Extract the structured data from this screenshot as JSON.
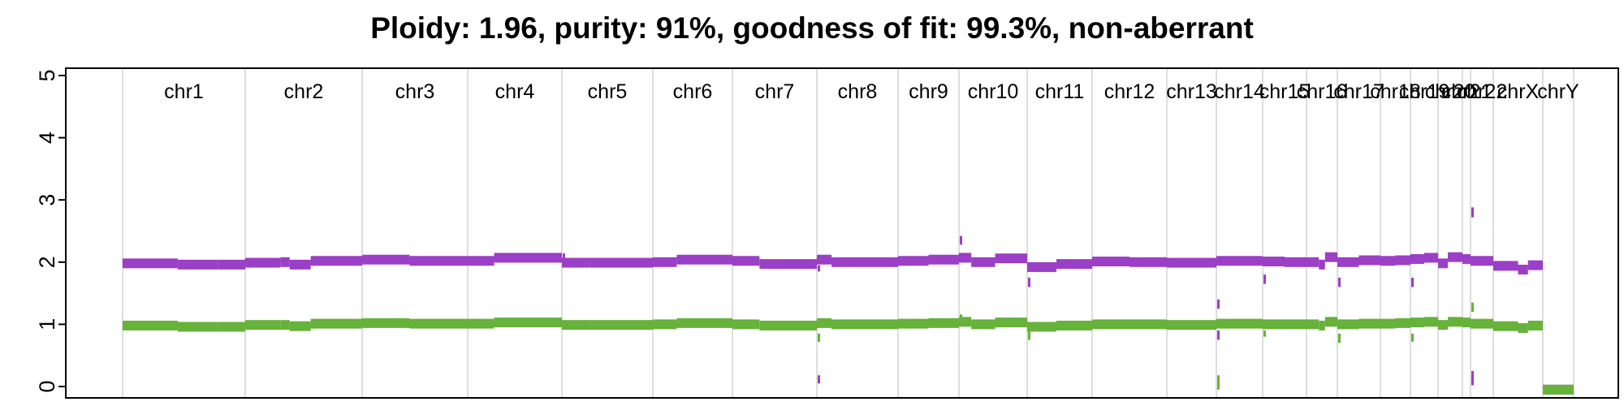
{
  "chart_data": {
    "type": "line",
    "title": "Ploidy: 1.96, purity: 91%, goodness of fit: 99.3%, non-aberrant",
    "xlabel": "",
    "ylabel": "",
    "ylim": [
      0,
      5
    ],
    "y_ticks": [
      "0",
      "1",
      "2",
      "3",
      "4",
      "5"
    ],
    "grid": true,
    "colors": {
      "total_copy_number": "#9b3fc6",
      "minor_allele_copy_number": "#66b23a",
      "grid": "#d3d3d3"
    },
    "chromosomes": [
      {
        "label": "chr1",
        "total": [
          [
            0.0,
            1.98
          ],
          [
            0.45,
            1.96
          ],
          [
            0.78,
            1.96
          ]
        ],
        "minor": [
          [
            0.0,
            0.98
          ],
          [
            0.45,
            0.96
          ],
          [
            0.78,
            0.96
          ]
        ]
      },
      {
        "label": "chr2",
        "total": [
          [
            0.0,
            1.99
          ],
          [
            0.3,
            2.0
          ],
          [
            0.38,
            1.96
          ],
          [
            0.56,
            2.02
          ]
        ],
        "minor": [
          [
            0.0,
            0.99
          ],
          [
            0.3,
            0.99
          ],
          [
            0.38,
            0.97
          ],
          [
            0.56,
            1.01
          ]
        ]
      },
      {
        "label": "chr3",
        "total": [
          [
            0.0,
            2.04
          ],
          [
            0.45,
            2.02
          ]
        ],
        "minor": [
          [
            0.0,
            1.02
          ],
          [
            0.45,
            1.01
          ]
        ]
      },
      {
        "label": "chr4",
        "total": [
          [
            0.0,
            2.02
          ],
          [
            0.28,
            2.07
          ]
        ],
        "minor": [
          [
            0.0,
            1.01
          ],
          [
            0.28,
            1.03
          ]
        ]
      },
      {
        "label": "chr5",
        "total": [
          [
            0.0,
            1.99
          ],
          [
            0.3,
            1.99
          ]
        ],
        "minor": [
          [
            0.0,
            0.99
          ],
          [
            0.3,
            0.99
          ]
        ]
      },
      {
        "label": "chr6",
        "total": [
          [
            0.0,
            2.0
          ],
          [
            0.3,
            2.04
          ]
        ],
        "minor": [
          [
            0.0,
            1.0
          ],
          [
            0.3,
            1.02
          ]
        ]
      },
      {
        "label": "chr7",
        "total": [
          [
            0.0,
            2.02
          ],
          [
            0.32,
            1.97
          ]
        ],
        "minor": [
          [
            0.0,
            1.0
          ],
          [
            0.32,
            0.98
          ]
        ]
      },
      {
        "label": "chr8",
        "total": [
          [
            0.0,
            2.04
          ],
          [
            0.18,
            2.0
          ]
        ],
        "minor": [
          [
            0.0,
            1.02
          ],
          [
            0.18,
            1.0
          ]
        ]
      },
      {
        "label": "chr9",
        "total": [
          [
            0.0,
            2.02
          ],
          [
            0.5,
            2.04
          ]
        ],
        "minor": [
          [
            0.0,
            1.01
          ],
          [
            0.5,
            1.02
          ]
        ]
      },
      {
        "label": "chr10",
        "total": [
          [
            0.0,
            2.07
          ],
          [
            0.18,
            2.0
          ],
          [
            0.53,
            2.06
          ]
        ],
        "minor": [
          [
            0.0,
            1.04
          ],
          [
            0.18,
            1.0
          ],
          [
            0.53,
            1.03
          ]
        ]
      },
      {
        "label": "chr11",
        "total": [
          [
            0.0,
            1.92
          ],
          [
            0.45,
            1.97
          ]
        ],
        "minor": [
          [
            0.0,
            0.96
          ],
          [
            0.45,
            0.98
          ]
        ]
      },
      {
        "label": "chr12",
        "total": [
          [
            0.0,
            2.01
          ],
          [
            0.5,
            2.0
          ]
        ],
        "minor": [
          [
            0.0,
            1.0
          ],
          [
            0.5,
            1.0
          ]
        ]
      },
      {
        "label": "chr13",
        "total": [
          [
            0.0,
            1.99
          ]
        ],
        "minor": [
          [
            0.0,
            0.99
          ]
        ]
      },
      {
        "label": "chr14",
        "total": [
          [
            0.0,
            2.02
          ]
        ],
        "minor": [
          [
            0.0,
            1.01
          ]
        ]
      },
      {
        "label": "chr15",
        "total": [
          [
            0.0,
            2.01
          ],
          [
            0.5,
            2.0
          ]
        ],
        "minor": [
          [
            0.0,
            1.0
          ],
          [
            0.5,
            1.0
          ]
        ]
      },
      {
        "label": "chr16",
        "total": [
          [
            0.0,
            2.0
          ],
          [
            0.4,
            1.96
          ],
          [
            0.6,
            2.08
          ]
        ],
        "minor": [
          [
            0.0,
            1.0
          ],
          [
            0.4,
            0.98
          ],
          [
            0.6,
            1.04
          ]
        ]
      },
      {
        "label": "chr17",
        "total": [
          [
            0.0,
            2.0
          ],
          [
            0.5,
            2.03
          ]
        ],
        "minor": [
          [
            0.0,
            1.0
          ],
          [
            0.5,
            1.01
          ]
        ]
      },
      {
        "label": "chr18",
        "total": [
          [
            0.0,
            2.02
          ],
          [
            0.5,
            2.03
          ]
        ],
        "minor": [
          [
            0.0,
            1.01
          ],
          [
            0.5,
            1.02
          ]
        ]
      },
      {
        "label": "chr19",
        "total": [
          [
            0.0,
            2.05
          ],
          [
            0.5,
            2.07
          ]
        ],
        "minor": [
          [
            0.0,
            1.03
          ],
          [
            0.5,
            1.04
          ]
        ]
      },
      {
        "label": "chr20",
        "total": [
          [
            0.0,
            1.98
          ],
          [
            0.4,
            2.08
          ]
        ],
        "minor": [
          [
            0.0,
            0.99
          ],
          [
            0.4,
            1.04
          ]
        ]
      },
      {
        "label": "chr21",
        "total": [
          [
            0.0,
            2.05
          ]
        ],
        "minor": [
          [
            0.0,
            1.03
          ]
        ]
      },
      {
        "label": "chr22",
        "total": [
          [
            0.0,
            2.02
          ]
        ],
        "minor": [
          [
            0.0,
            1.01
          ]
        ]
      },
      {
        "label": "chrX",
        "total": [
          [
            0.0,
            1.94
          ],
          [
            0.5,
            1.88
          ],
          [
            0.7,
            1.95
          ]
        ],
        "minor": [
          [
            0.0,
            0.97
          ],
          [
            0.5,
            0.94
          ],
          [
            0.7,
            0.98
          ]
        ]
      },
      {
        "label": "chrY",
        "total": [
          [
            0.0,
            -0.05
          ]
        ],
        "minor": [
          [
            0.0,
            -0.05
          ]
        ]
      }
    ],
    "outliers": [
      {
        "chromosome": "chr5",
        "color": "total",
        "y_range": [
          2.05,
          2.14
        ]
      },
      {
        "chromosome": "chr8",
        "color": "total",
        "y_range": [
          1.85,
          1.95
        ]
      },
      {
        "chromosome": "chr8",
        "color": "minor",
        "y_range": [
          0.72,
          0.85
        ]
      },
      {
        "chromosome": "chr8",
        "color": "total",
        "y_range": [
          0.05,
          0.18
        ]
      },
      {
        "chromosome": "chr10",
        "color": "total",
        "y_range": [
          2.28,
          2.42
        ]
      },
      {
        "chromosome": "chr10",
        "color": "minor",
        "y_range": [
          1.08,
          1.16
        ]
      },
      {
        "chromosome": "chr11",
        "color": "total",
        "y_range": [
          1.6,
          1.75
        ]
      },
      {
        "chromosome": "chr11",
        "color": "minor",
        "y_range": [
          0.75,
          0.88
        ]
      },
      {
        "chromosome": "chr14",
        "color": "total",
        "y_range": [
          1.25,
          1.4
        ]
      },
      {
        "chromosome": "chr14",
        "color": "total",
        "y_range": [
          0.75,
          0.9
        ]
      },
      {
        "chromosome": "chr14",
        "color": "minor",
        "y_range": [
          -0.05,
          0.18
        ]
      },
      {
        "chromosome": "chr15",
        "color": "total",
        "y_range": [
          1.65,
          1.8
        ]
      },
      {
        "chromosome": "chr15",
        "color": "minor",
        "y_range": [
          0.8,
          0.9
        ]
      },
      {
        "chromosome": "chr17",
        "color": "total",
        "y_range": [
          1.6,
          1.75
        ]
      },
      {
        "chromosome": "chr17",
        "color": "minor",
        "y_range": [
          0.7,
          0.85
        ]
      },
      {
        "chromosome": "chr19",
        "color": "total",
        "y_range": [
          1.6,
          1.75
        ]
      },
      {
        "chromosome": "chr19",
        "color": "minor",
        "y_range": [
          0.72,
          0.85
        ]
      },
      {
        "chromosome": "chr22",
        "color": "total",
        "y_range": [
          2.72,
          2.88
        ]
      },
      {
        "chromosome": "chr22",
        "color": "minor",
        "y_range": [
          1.2,
          1.35
        ]
      },
      {
        "chromosome": "chr22",
        "color": "total",
        "y_range": [
          0.02,
          0.25
        ]
      }
    ]
  }
}
